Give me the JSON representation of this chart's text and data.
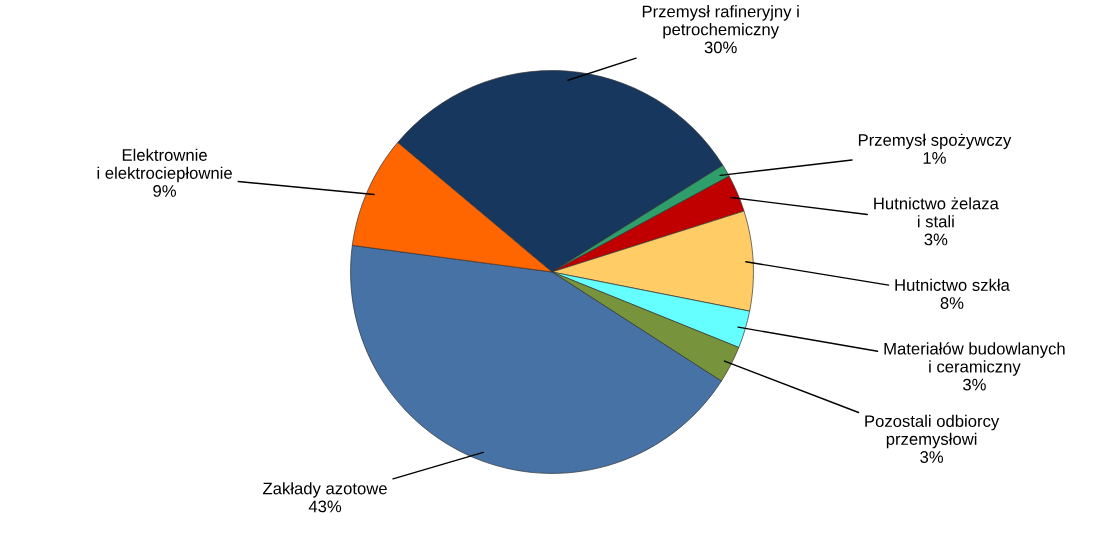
{
  "chart_data": {
    "type": "pie",
    "categories": [
      "Przemysł rafineryjny i\npetrochemiczny",
      "Przemysł spożywczy",
      "Hutnictwo żelaza\ni stali",
      "Hutnictwo szkła",
      "Materiałów budowlanych\ni ceramiczny",
      "Pozostali odbiorcy\nprzemysłowi",
      "Zakłady azotowe",
      "Elektrownie\ni elektrociepłownie"
    ],
    "values": [
      30,
      1,
      3,
      8,
      3,
      3,
      43,
      9
    ],
    "value_labels": [
      "30%",
      "1%",
      "3%",
      "8%",
      "3%",
      "3%",
      "43%",
      "9%"
    ],
    "colors": [
      "#17375e",
      "#2e9e6b",
      "#c00000",
      "#ffcc66",
      "#66ffff",
      "#77933c",
      "#4672a6",
      "#ff6600"
    ]
  }
}
